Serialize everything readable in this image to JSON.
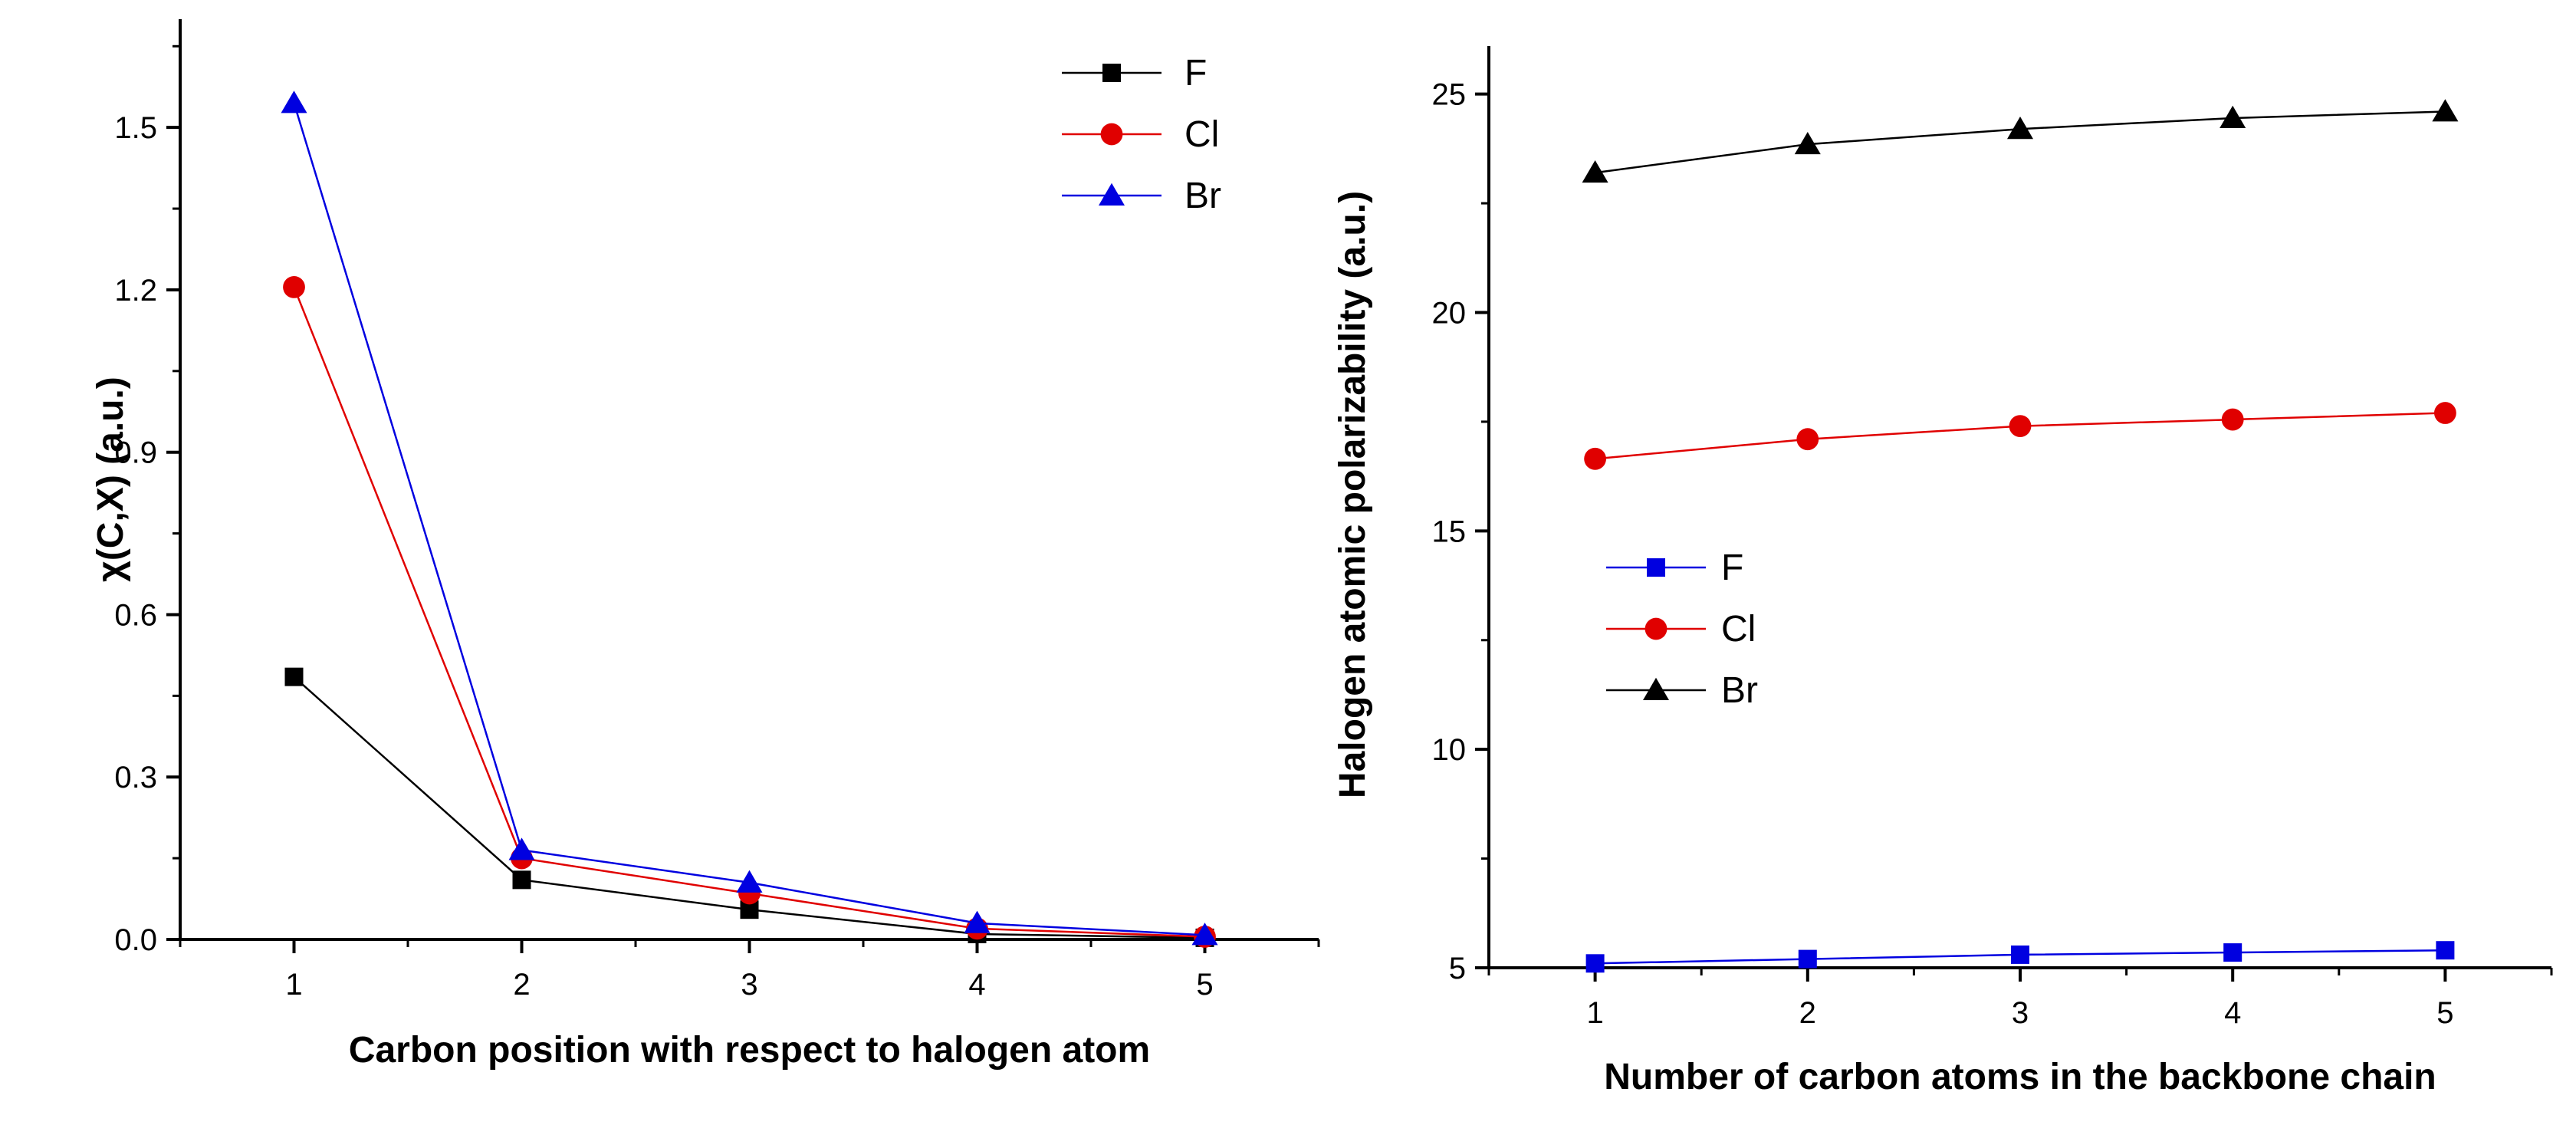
{
  "chart_data": [
    {
      "type": "line",
      "xlabel": "Carbon position with respect to halogen atom",
      "ylabel": "χ(C,X) (a.u.)",
      "x": [
        1,
        2,
        3,
        4,
        5
      ],
      "xlim": [
        0.5,
        5.5
      ],
      "ylim": [
        0,
        1.7
      ],
      "xticks": [
        "1",
        "2",
        "3",
        "4",
        "5"
      ],
      "yticks": [
        "0.0",
        "0.3",
        "0.6",
        "0.9",
        "1.2",
        "1.5"
      ],
      "legend_position": "top-right",
      "series": [
        {
          "name": "F",
          "values": [
            0.485,
            0.11,
            0.055,
            0.01,
            0.003
          ],
          "color": "#000000",
          "marker": "square"
        },
        {
          "name": "Cl",
          "values": [
            1.205,
            0.15,
            0.085,
            0.02,
            0.005
          ],
          "color": "#e00000",
          "marker": "circle"
        },
        {
          "name": "Br",
          "values": [
            1.545,
            0.165,
            0.105,
            0.03,
            0.008
          ],
          "color": "#0000e0",
          "marker": "triangle"
        }
      ]
    },
    {
      "type": "line",
      "xlabel": "Number of carbon atoms in the backbone chain",
      "ylabel": "Halogen atomic polarizability (a.u.)",
      "x": [
        1,
        2,
        3,
        4,
        5
      ],
      "xlim": [
        0.5,
        5.5
      ],
      "ylim": [
        5,
        26.1
      ],
      "xticks": [
        "1",
        "2",
        "3",
        "4",
        "5"
      ],
      "yticks": [
        "5",
        "10",
        "15",
        "20",
        "25"
      ],
      "legend_position": "middle-left",
      "series": [
        {
          "name": "F",
          "values": [
            5.1,
            5.2,
            5.3,
            5.35,
            5.4
          ],
          "color": "#0000e0",
          "marker": "square"
        },
        {
          "name": "Cl",
          "values": [
            16.65,
            17.1,
            17.4,
            17.55,
            17.7
          ],
          "color": "#e00000",
          "marker": "circle"
        },
        {
          "name": "Br",
          "values": [
            23.2,
            23.85,
            24.2,
            24.45,
            24.6
          ],
          "color": "#000000",
          "marker": "triangle"
        }
      ]
    }
  ]
}
